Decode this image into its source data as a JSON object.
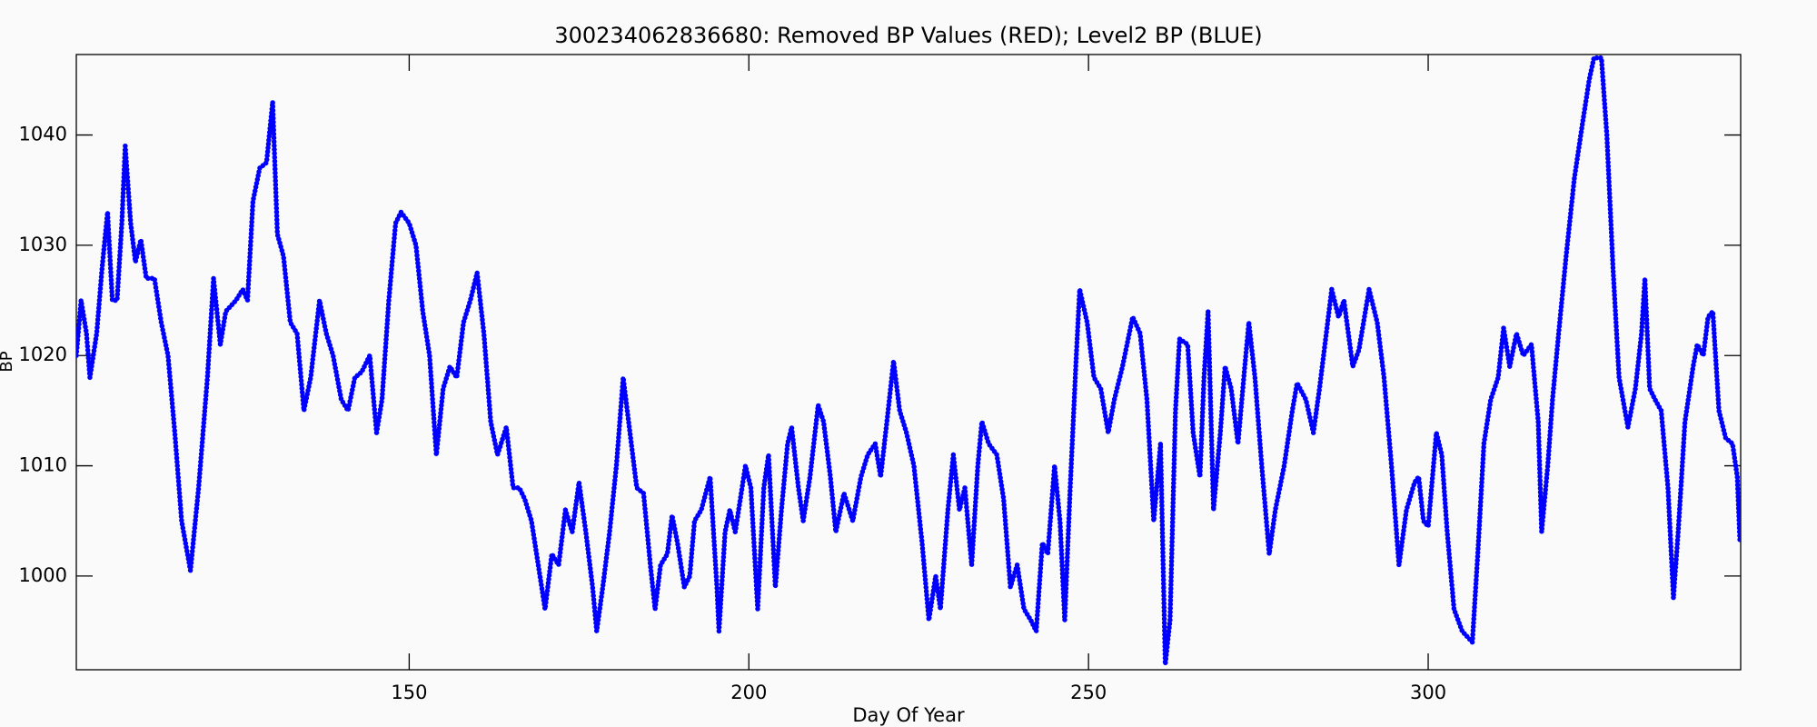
{
  "chart_data": {
    "type": "scatter",
    "title": "300234062836680: Removed BP Values (RED); Level2 BP (BLUE)",
    "x_label": "Day Of Year",
    "y_label": "BP",
    "color": "#0000ff",
    "grid": false,
    "xlim": [
      101,
      346
    ],
    "ylim": [
      991.5,
      1047.3
    ],
    "xticks": [
      150,
      200,
      250,
      300
    ],
    "yticks": [
      1000,
      1010,
      1020,
      1030,
      1040
    ],
    "x": [
      101,
      101.7,
      102.5,
      103,
      104,
      104.8,
      105.6,
      106.3,
      107,
      107.7,
      108.2,
      109,
      109.7,
      110.5,
      111.3,
      112.5,
      113.5,
      114.5,
      115.5,
      116.5,
      117.8,
      119,
      120.3,
      121.2,
      122.2,
      123,
      124.5,
      125.5,
      126.2,
      127,
      128,
      129,
      129.9,
      130.6,
      131.5,
      132.5,
      133.5,
      134.5,
      135.5,
      136.8,
      137.8,
      138.8,
      140,
      141,
      142,
      143,
      144.2,
      145.2,
      146,
      147,
      148,
      148.8,
      150,
      151,
      152,
      153,
      154,
      155,
      156,
      157,
      158,
      159,
      160,
      161,
      162,
      163,
      164.3,
      165.3,
      166.2,
      167,
      168,
      169,
      170,
      171,
      172,
      173,
      174,
      175,
      176,
      177,
      177.6,
      178.5,
      179.5,
      180.5,
      181.5,
      182.5,
      183.5,
      184.5,
      185.5,
      186.2,
      187,
      188,
      188.7,
      189.5,
      190.5,
      191.3,
      192,
      193,
      194.3,
      195.3,
      195.6,
      196.5,
      197.2,
      198,
      199.5,
      200.3,
      201.3,
      202.2,
      202.9,
      203.9,
      204.8,
      205.7,
      206.3,
      207.3,
      208,
      209,
      210.2,
      211,
      212,
      212.8,
      214,
      215.3,
      216.5,
      217.5,
      218.6,
      219.4,
      220.5,
      221.3,
      222.2,
      223.2,
      224.3,
      225.5,
      226.5,
      227.5,
      228.2,
      229.3,
      230.1,
      231,
      231.8,
      232.8,
      233.7,
      234.3,
      235.3,
      236.5,
      237.5,
      238.5,
      239.5,
      240.5,
      241.5,
      242.3,
      243.2,
      244,
      245,
      245.8,
      246.5,
      247.3,
      248.2,
      248.7,
      249.8,
      250.8,
      251.8,
      252.9,
      253.8,
      255,
      256.5,
      257.6,
      258.6,
      259.6,
      260.6,
      261.3,
      262,
      262.8,
      263.4,
      264.6,
      265.4,
      266.4,
      267,
      267.6,
      268.4,
      269.4,
      270.1,
      271,
      272,
      273,
      273.6,
      274.5,
      275.5,
      276.6,
      277.5,
      278.8,
      280,
      280.7,
      282,
      283.1,
      284,
      285,
      285.8,
      286.8,
      287.6,
      288.9,
      289.8,
      291.3,
      292.5,
      293.5,
      294.6,
      295.7,
      296.8,
      298,
      298.6,
      299.3,
      300,
      301.2,
      302,
      302.8,
      303.8,
      305,
      306.5,
      307.3,
      308.2,
      309.2,
      310.3,
      311.1,
      312,
      313,
      314,
      315.2,
      316.2,
      316.7,
      317.6,
      318.3,
      319.2,
      320.3,
      321.5,
      322.7,
      323.7,
      324.4,
      325.5,
      326.3,
      327.2,
      328.1,
      329.4,
      330.5,
      331.4,
      331.9,
      332.6,
      333.4,
      334.3,
      335.3,
      336.1,
      336.8,
      337.8,
      339,
      339.6,
      340.5,
      341.2,
      341.9,
      342.8,
      343.8,
      344.8,
      345.5,
      345.9
    ],
    "values": [
      1020,
      1025,
      1022,
      1018,
      1022,
      1028,
      1033,
      1025,
      1025,
      1032,
      1039,
      1032,
      1028.5,
      1030.5,
      1027,
      1027,
      1023,
      1020,
      1013,
      1005,
      1000.5,
      1008,
      1018,
      1027,
      1021,
      1024,
      1025,
      1026,
      1025,
      1034,
      1037,
      1037.5,
      1043,
      1031,
      1029,
      1023,
      1022,
      1015,
      1018,
      1025,
      1022,
      1020,
      1016,
      1015,
      1018,
      1018.5,
      1020,
      1013,
      1016,
      1025,
      1032,
      1033,
      1032,
      1030,
      1024,
      1020,
      1011,
      1017,
      1019,
      1018,
      1023,
      1025,
      1027.5,
      1022,
      1014,
      1011,
      1013.5,
      1008,
      1008,
      1007,
      1005,
      1001,
      997,
      1002,
      1001,
      1006,
      1004,
      1008.5,
      1004,
      999,
      995,
      999,
      1004,
      1010,
      1018,
      1013,
      1008,
      1007.5,
      1001,
      997,
      1001,
      1002,
      1005.5,
      1003,
      999,
      1000,
      1005,
      1006,
      1009,
      999,
      995,
      1004,
      1006,
      1004,
      1010,
      1008,
      997,
      1008,
      1011,
      999,
      1006,
      1012,
      1013.5,
      1008,
      1005,
      1009,
      1015.5,
      1014,
      1009,
      1004,
      1007.5,
      1005,
      1009,
      1011,
      1012,
      1009,
      1015,
      1019.5,
      1015,
      1013,
      1010,
      1003,
      996,
      1000,
      997,
      1006,
      1011,
      1006,
      1008,
      1001,
      1010,
      1014,
      1012,
      1011,
      1007,
      999,
      1001,
      997,
      996,
      995,
      1003,
      1002,
      1010,
      1005,
      996,
      1008,
      1020,
      1026,
      1023,
      1018,
      1017,
      1013,
      1016,
      1019,
      1023.5,
      1022,
      1016,
      1005,
      1012,
      992,
      996,
      1015,
      1021.5,
      1021,
      1013,
      1009,
      1018,
      1024,
      1006,
      1013,
      1019,
      1017,
      1012,
      1019,
      1023,
      1018,
      1010,
      1002,
      1006,
      1010,
      1015,
      1017.5,
      1016,
      1013,
      1017,
      1022,
      1026,
      1023.5,
      1025,
      1019,
      1020.5,
      1026,
      1023,
      1018,
      1010,
      1001,
      1006,
      1008.5,
      1009,
      1005,
      1004.5,
      1013,
      1011,
      1004,
      997,
      995,
      994,
      1002,
      1012,
      1016,
      1018,
      1022.5,
      1019,
      1022,
      1020,
      1021,
      1014,
      1004,
      1010,
      1016,
      1022,
      1029,
      1036,
      1041,
      1045,
      1047,
      1047,
      1040,
      1028,
      1018,
      1013.5,
      1017,
      1022,
      1027,
      1017,
      1016,
      1015,
      1008,
      998,
      1004,
      1014,
      1019,
      1021,
      1020,
      1023.5,
      1024,
      1015,
      1012.5,
      1012,
      1009,
      1003
    ]
  }
}
